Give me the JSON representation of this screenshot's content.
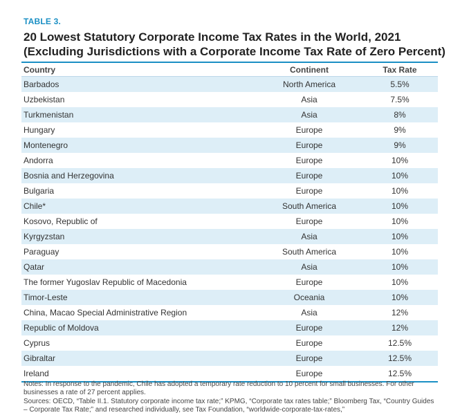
{
  "table_label": "TABLE 3.",
  "title_line1": "20 Lowest Statutory Corporate Income Tax Rates in the World, 2021",
  "title_line2": "(Excluding Jurisdictions with a Corporate Income Tax Rate of Zero Percent)",
  "columns": {
    "country": "Country",
    "continent": "Continent",
    "rate": "Tax Rate"
  },
  "rows": [
    {
      "country": "Barbados",
      "continent": "North America",
      "rate": "5.5%"
    },
    {
      "country": "Uzbekistan",
      "continent": "Asia",
      "rate": "7.5%"
    },
    {
      "country": "Turkmenistan",
      "continent": "Asia",
      "rate": "8%"
    },
    {
      "country": "Hungary",
      "continent": "Europe",
      "rate": "9%"
    },
    {
      "country": "Montenegro",
      "continent": "Europe",
      "rate": "9%"
    },
    {
      "country": "Andorra",
      "continent": "Europe",
      "rate": "10%"
    },
    {
      "country": "Bosnia and Herzegovina",
      "continent": "Europe",
      "rate": "10%"
    },
    {
      "country": "Bulgaria",
      "continent": "Europe",
      "rate": "10%"
    },
    {
      "country": "Chile*",
      "continent": "South America",
      "rate": "10%"
    },
    {
      "country": "Kosovo, Republic of",
      "continent": "Europe",
      "rate": "10%"
    },
    {
      "country": "Kyrgyzstan",
      "continent": "Asia",
      "rate": "10%"
    },
    {
      "country": "Paraguay",
      "continent": "South America",
      "rate": "10%"
    },
    {
      "country": "Qatar",
      "continent": "Asia",
      "rate": "10%"
    },
    {
      "country": "The former Yugoslav Republic of Macedonia",
      "continent": "Europe",
      "rate": "10%"
    },
    {
      "country": "Timor-Leste",
      "continent": "Oceania",
      "rate": "10%"
    },
    {
      "country": "China, Macao Special Administrative Region",
      "continent": "Asia",
      "rate": "12%"
    },
    {
      "country": "Republic of Moldova",
      "continent": "Europe",
      "rate": "12%"
    },
    {
      "country": "Cyprus",
      "continent": "Europe",
      "rate": "12.5%"
    },
    {
      "country": "Gibraltar",
      "continent": "Europe",
      "rate": "12.5%"
    },
    {
      "country": "Ireland",
      "continent": "Europe",
      "rate": "12.5%"
    }
  ],
  "notes": "Notes: In response to the pandemic, Chile has adopted a temporary rate reduction to 10 percent for small businesses. For other businesses a rate of 27 percent applies.",
  "sources": "Sources: OECD, “Table II.1. Statutory corporate income tax rate;” KPMG, “Corporate tax rates table;” Bloomberg Tax, “Country Guides – Corporate Tax Rate;” and researched individually, see Tax Foundation, “worldwide-corporate-tax-rates,”"
}
